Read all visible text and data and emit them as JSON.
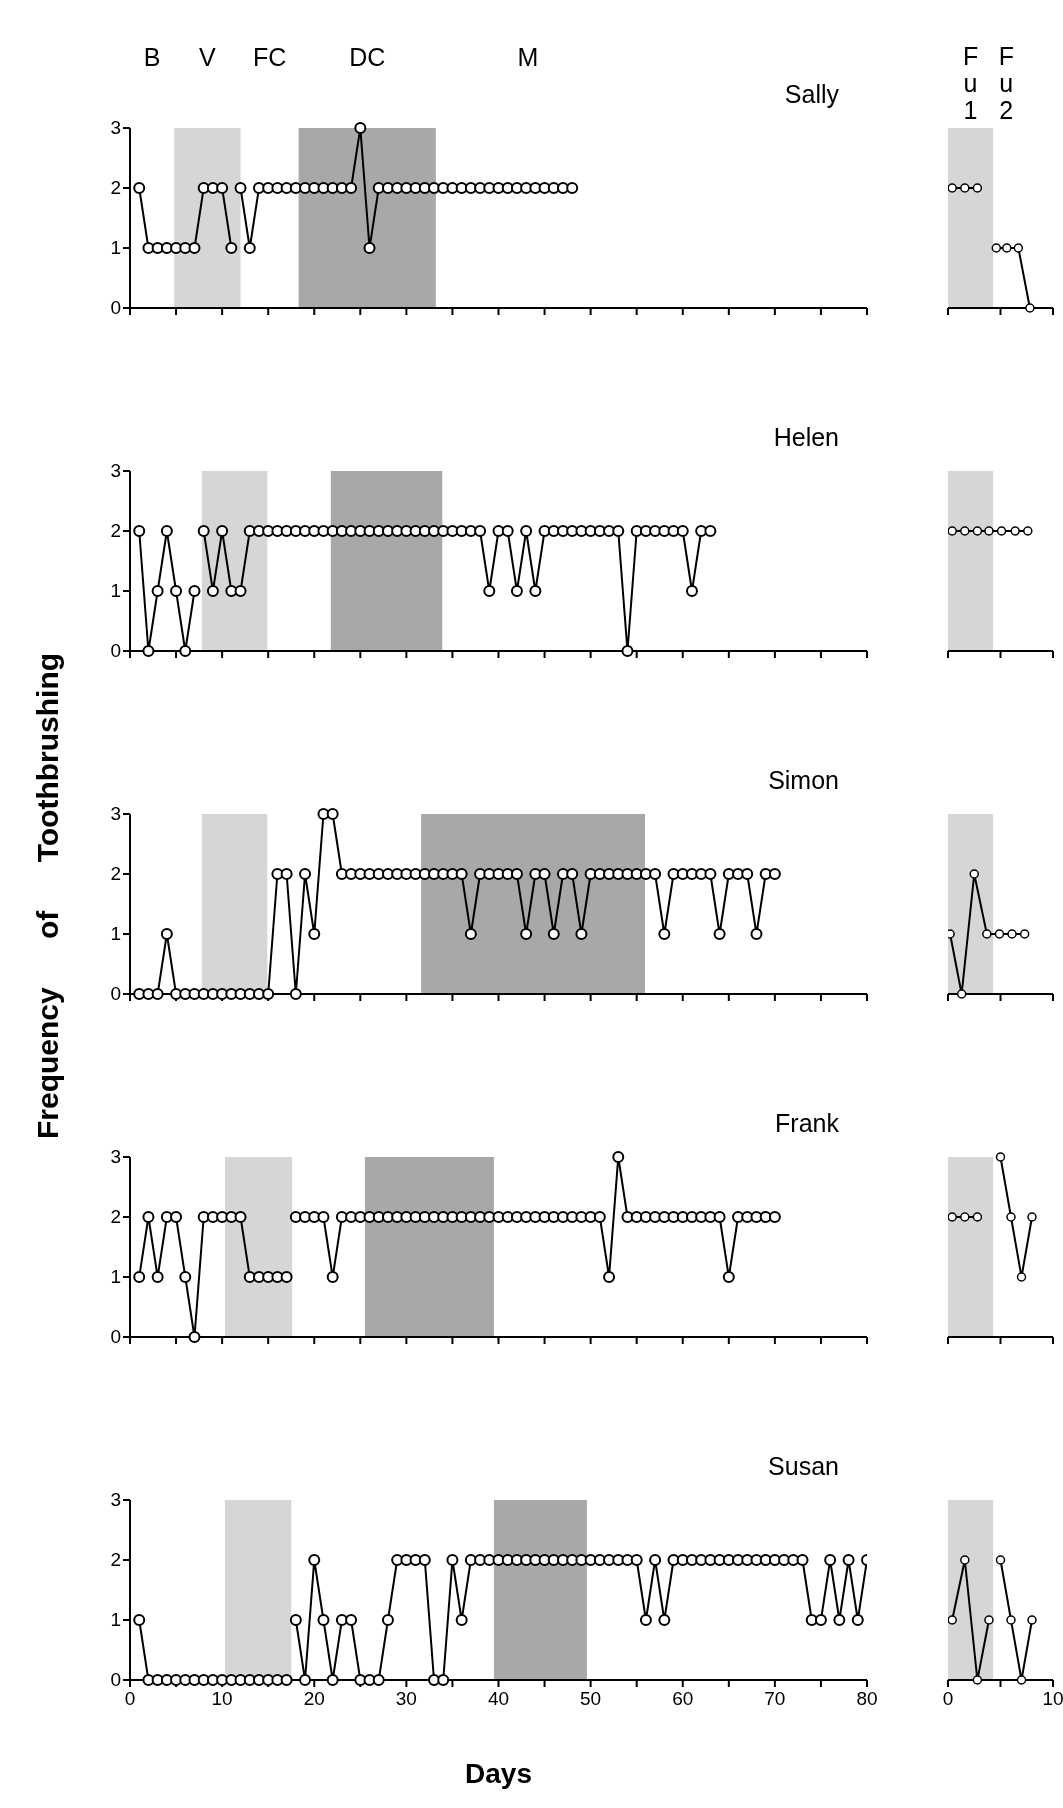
{
  "chart_data": [
    {
      "type": "line",
      "title": "Sally",
      "xlim": [
        0,
        80
      ],
      "xticks": [
        0,
        {
          "value": 5,
          "label": null
        },
        10,
        {
          "value": 15,
          "label": null
        },
        20,
        {
          "value": 25,
          "label": null
        },
        30,
        {
          "value": 35,
          "label": null
        },
        40,
        {
          "value": 45,
          "label": null
        },
        50,
        {
          "value": 55,
          "label": null
        },
        60,
        {
          "value": 65,
          "label": null
        },
        70,
        {
          "value": 75,
          "label": null
        },
        80
      ],
      "ylim": [
        0,
        3
      ],
      "yticks": [
        0,
        1,
        2,
        3
      ],
      "tick_labels": "y",
      "marker": "circle",
      "annotations": [
        "B",
        "FC",
        "M"
      ],
      "bands": [
        {
          "axis": "x",
          "from": 4.8,
          "to": 12,
          "label": "V",
          "color": "#d6d6d6"
        },
        {
          "axis": "x",
          "from": 18.3,
          "to": 33.2,
          "label": "DC",
          "color": "#a8a8a8"
        }
      ],
      "series": [
        {
          "color": "#000000",
          "x": [
            1,
            2,
            3,
            4,
            5,
            6,
            7,
            8,
            9,
            10,
            11
          ],
          "values": [
            2,
            1,
            1,
            1,
            1,
            1,
            1,
            2,
            2,
            2,
            1
          ]
        },
        {
          "color": "#000000",
          "x": [
            12,
            13,
            14,
            15,
            16,
            17,
            18,
            19,
            20,
            21,
            22,
            23,
            24,
            25,
            26,
            27,
            28,
            29,
            30,
            31,
            32,
            33,
            34,
            35,
            36,
            37,
            38,
            39,
            40,
            41,
            42,
            43,
            44,
            45,
            46,
            47,
            48
          ],
          "values": [
            2,
            1,
            2,
            2,
            2,
            2,
            2,
            2,
            2,
            2,
            2,
            2,
            2,
            3,
            1,
            2,
            2,
            2,
            2,
            2,
            2,
            2,
            2,
            2,
            2,
            2,
            2,
            2,
            2,
            2,
            2,
            2,
            2,
            2,
            2,
            2,
            2
          ]
        }
      ]
    },
    {
      "type": "line",
      "xlim": [
        0,
        10
      ],
      "xticks": [
        0,
        {
          "value": 5,
          "label": null
        },
        10
      ],
      "ylim": [
        0,
        3
      ],
      "tick_labels": false,
      "marker": "circle",
      "annotations": [
        "Fu2"
      ],
      "bands": [
        {
          "axis": "x",
          "from": 0,
          "to": 4.3,
          "label": "Fu1",
          "color": "#d6d6d6"
        }
      ],
      "series": [
        {
          "color": "#000000",
          "x": [
            0.4,
            1.6,
            2.8
          ],
          "values": [
            2,
            2,
            2
          ]
        },
        {
          "color": "#000000",
          "x": [
            4.6,
            5.6,
            6.7,
            7.8
          ],
          "values": [
            1,
            1,
            1,
            0
          ]
        }
      ]
    },
    {
      "type": "line",
      "title": "Helen",
      "xlim": [
        0,
        80
      ],
      "xticks": [
        0,
        {
          "value": 5,
          "label": null
        },
        10,
        {
          "value": 15,
          "label": null
        },
        20,
        {
          "value": 25,
          "label": null
        },
        30,
        {
          "value": 35,
          "label": null
        },
        40,
        {
          "value": 45,
          "label": null
        },
        50,
        {
          "value": 55,
          "label": null
        },
        60,
        {
          "value": 65,
          "label": null
        },
        70,
        {
          "value": 75,
          "label": null
        },
        80
      ],
      "ylim": [
        0,
        3
      ],
      "yticks": [
        0,
        1,
        2,
        3
      ],
      "tick_labels": "y",
      "marker": "circle",
      "bands": [
        {
          "axis": "x",
          "from": 7.8,
          "to": 14.9,
          "color": "#d6d6d6"
        },
        {
          "axis": "x",
          "from": 21.8,
          "to": 33.9,
          "color": "#a8a8a8"
        }
      ],
      "series": [
        {
          "color": "#000000",
          "x": [
            1,
            2,
            3,
            4,
            5,
            6,
            7
          ],
          "values": [
            2,
            0,
            1,
            2,
            1,
            0,
            1
          ]
        },
        {
          "color": "#000000",
          "x": [
            8,
            9,
            10,
            11,
            12,
            13,
            14,
            15,
            16,
            17,
            18,
            19,
            20,
            21,
            22,
            23,
            24,
            25,
            26,
            27,
            28,
            29,
            30,
            31,
            32,
            33,
            34,
            35,
            36,
            37,
            38,
            39,
            40,
            41,
            42,
            43,
            44,
            45,
            46,
            47,
            48,
            49,
            50,
            51,
            52,
            53,
            54,
            55,
            56,
            57,
            58,
            59,
            60,
            61,
            62,
            63
          ],
          "values": [
            2,
            1,
            2,
            1,
            1,
            2,
            2,
            2,
            2,
            2,
            2,
            2,
            2,
            2,
            2,
            2,
            2,
            2,
            2,
            2,
            2,
            2,
            2,
            2,
            2,
            2,
            2,
            2,
            2,
            2,
            2,
            1,
            2,
            2,
            1,
            2,
            1,
            2,
            2,
            2,
            2,
            2,
            2,
            2,
            2,
            2,
            0,
            2,
            2,
            2,
            2,
            2,
            2,
            1,
            2,
            2
          ]
        }
      ]
    },
    {
      "type": "line",
      "xlim": [
        0,
        10
      ],
      "xticks": [
        0,
        {
          "value": 5,
          "label": null
        },
        10
      ],
      "ylim": [
        0,
        3
      ],
      "tick_labels": false,
      "marker": "circle",
      "bands": [
        {
          "axis": "x",
          "from": 0,
          "to": 4.3,
          "color": "#d6d6d6"
        }
      ],
      "series": [
        {
          "color": "#000000",
          "x": [
            0.4,
            1.6,
            2.8,
            3.9,
            5.1,
            6.4,
            7.6
          ],
          "values": [
            2,
            2,
            2,
            2,
            2,
            2,
            2
          ]
        }
      ]
    },
    {
      "type": "line",
      "title": "Simon",
      "ylabel": "Frequency of Toothbrushing",
      "xlim": [
        0,
        80
      ],
      "xticks": [
        0,
        {
          "value": 5,
          "label": null
        },
        10,
        {
          "value": 15,
          "label": null
        },
        20,
        {
          "value": 25,
          "label": null
        },
        30,
        {
          "value": 35,
          "label": null
        },
        40,
        {
          "value": 45,
          "label": null
        },
        50,
        {
          "value": 55,
          "label": null
        },
        60,
        {
          "value": 65,
          "label": null
        },
        70,
        {
          "value": 75,
          "label": null
        },
        80
      ],
      "ylim": [
        0,
        3
      ],
      "yticks": [
        0,
        1,
        2,
        3
      ],
      "tick_labels": "y",
      "marker": "circle",
      "bands": [
        {
          "axis": "x",
          "from": 7.8,
          "to": 14.9,
          "color": "#d6d6d6"
        },
        {
          "axis": "x",
          "from": 31.6,
          "to": 55.9,
          "color": "#a8a8a8"
        }
      ],
      "series": [
        {
          "color": "#000000",
          "x": [
            1,
            2,
            3,
            4,
            5,
            6,
            7,
            8,
            9,
            10,
            11,
            12,
            13,
            14,
            15,
            16,
            17,
            18,
            19,
            20,
            21,
            22,
            23,
            24,
            25,
            26,
            27,
            28,
            29,
            30,
            31,
            32,
            33,
            34,
            35,
            36,
            37,
            38,
            39,
            40,
            41,
            42,
            43,
            44,
            45,
            46,
            47,
            48,
            49,
            50,
            51,
            52,
            53,
            54,
            55,
            56,
            57,
            58,
            59,
            60,
            61,
            62,
            63,
            64,
            65,
            66,
            67,
            68,
            69,
            70
          ],
          "values": [
            0,
            0,
            0,
            1,
            0,
            0,
            0,
            0,
            0,
            0,
            0,
            0,
            0,
            0,
            0,
            2,
            2,
            0,
            2,
            1,
            3,
            3,
            2,
            2,
            2,
            2,
            2,
            2,
            2,
            2,
            2,
            2,
            2,
            2,
            2,
            2,
            1,
            2,
            2,
            2,
            2,
            2,
            1,
            2,
            2,
            1,
            2,
            2,
            1,
            2,
            2,
            2,
            2,
            2,
            2,
            2,
            2,
            1,
            2,
            2,
            2,
            2,
            2,
            1,
            2,
            2,
            2,
            1,
            2,
            2
          ]
        }
      ]
    },
    {
      "type": "line",
      "xlim": [
        0,
        10
      ],
      "xticks": [
        0,
        {
          "value": 5,
          "label": null
        },
        10
      ],
      "ylim": [
        0,
        3
      ],
      "tick_labels": false,
      "marker": "circle",
      "bands": [
        {
          "axis": "x",
          "from": 0,
          "to": 4.3,
          "color": "#d6d6d6"
        }
      ],
      "series": [
        {
          "color": "#000000",
          "x": [
            0.2,
            1.3,
            2.5,
            3.7,
            4.9,
            6.1,
            7.3
          ],
          "values": [
            1,
            0,
            2,
            1,
            1,
            1,
            1
          ]
        }
      ]
    },
    {
      "type": "line",
      "title": "Frank",
      "xlim": [
        0,
        80
      ],
      "xticks": [
        0,
        {
          "value": 5,
          "label": null
        },
        10,
        {
          "value": 15,
          "label": null
        },
        20,
        {
          "value": 25,
          "label": null
        },
        30,
        {
          "value": 35,
          "label": null
        },
        40,
        {
          "value": 45,
          "label": null
        },
        50,
        {
          "value": 55,
          "label": null
        },
        60,
        {
          "value": 65,
          "label": null
        },
        70,
        {
          "value": 75,
          "label": null
        },
        80
      ],
      "ylim": [
        0,
        3
      ],
      "yticks": [
        0,
        1,
        2,
        3
      ],
      "tick_labels": "y",
      "marker": "circle",
      "bands": [
        {
          "axis": "x",
          "from": 10.3,
          "to": 17.6,
          "color": "#d6d6d6"
        },
        {
          "axis": "x",
          "from": 25.5,
          "to": 39.5,
          "color": "#a8a8a8"
        }
      ],
      "series": [
        {
          "color": "#000000",
          "x": [
            1,
            2,
            3,
            4,
            5,
            6,
            7,
            8,
            9,
            10,
            11,
            12,
            13,
            14,
            15,
            16,
            17
          ],
          "values": [
            1,
            2,
            1,
            2,
            2,
            1,
            0,
            2,
            2,
            2,
            2,
            2,
            1,
            1,
            1,
            1,
            1
          ]
        },
        {
          "color": "#000000",
          "x": [
            18,
            19,
            20,
            21,
            22,
            23,
            24,
            25,
            26,
            27,
            28,
            29,
            30,
            31,
            32,
            33,
            34,
            35,
            36,
            37,
            38,
            39,
            40,
            41,
            42,
            43,
            44,
            45,
            46,
            47,
            48,
            49,
            50,
            51,
            52,
            53,
            54,
            55,
            56,
            57,
            58,
            59,
            60,
            61,
            62,
            63,
            64,
            65,
            66,
            67,
            68,
            69,
            70
          ],
          "values": [
            2,
            2,
            2,
            2,
            1,
            2,
            2,
            2,
            2,
            2,
            2,
            2,
            2,
            2,
            2,
            2,
            2,
            2,
            2,
            2,
            2,
            2,
            2,
            2,
            2,
            2,
            2,
            2,
            2,
            2,
            2,
            2,
            2,
            2,
            1,
            3,
            2,
            2,
            2,
            2,
            2,
            2,
            2,
            2,
            2,
            2,
            2,
            1,
            2,
            2,
            2,
            2,
            2
          ]
        }
      ]
    },
    {
      "type": "line",
      "xlim": [
        0,
        10
      ],
      "xticks": [
        0,
        {
          "value": 5,
          "label": null
        },
        10
      ],
      "ylim": [
        0,
        3
      ],
      "tick_labels": false,
      "marker": "circle",
      "bands": [
        {
          "axis": "x",
          "from": 0,
          "to": 4.3,
          "color": "#d6d6d6"
        }
      ],
      "series": [
        {
          "color": "#000000",
          "x": [
            0.4,
            1.6,
            2.8
          ],
          "values": [
            2,
            2,
            2
          ]
        },
        {
          "color": "#000000",
          "x": [
            5,
            6,
            7,
            8
          ],
          "values": [
            3,
            2,
            1,
            2
          ]
        }
      ]
    },
    {
      "type": "line",
      "title": "Susan",
      "xlabel": "Days",
      "xlim": [
        0,
        80
      ],
      "xticks": [
        0,
        {
          "value": 5,
          "label": null
        },
        10,
        {
          "value": 15,
          "label": null
        },
        20,
        {
          "value": 25,
          "label": null
        },
        30,
        {
          "value": 35,
          "label": null
        },
        40,
        {
          "value": 45,
          "label": null
        },
        50,
        {
          "value": 55,
          "label": null
        },
        60,
        {
          "value": 65,
          "label": null
        },
        70,
        {
          "value": 75,
          "label": null
        },
        80
      ],
      "ylim": [
        0,
        3
      ],
      "yticks": [
        0,
        1,
        2,
        3
      ],
      "marker": "circle",
      "bands": [
        {
          "axis": "x",
          "from": 10.3,
          "to": 17.5,
          "color": "#d6d6d6"
        },
        {
          "axis": "x",
          "from": 39.5,
          "to": 49.6,
          "color": "#a8a8a8"
        }
      ],
      "series": [
        {
          "color": "#000000",
          "x": [
            1,
            2,
            3,
            4,
            5,
            6,
            7,
            8,
            9,
            10,
            11,
            12,
            13,
            14,
            15,
            16,
            17
          ],
          "values": [
            1,
            0,
            0,
            0,
            0,
            0,
            0,
            0,
            0,
            0,
            0,
            0,
            0,
            0,
            0,
            0,
            0
          ]
        },
        {
          "color": "#000000",
          "x": [
            18,
            19,
            20,
            21,
            22,
            23,
            24,
            25,
            26,
            27,
            28,
            29,
            30,
            31,
            32,
            33,
            34,
            35,
            36,
            37,
            38,
            39,
            40,
            41,
            42,
            43,
            44,
            45,
            46,
            47,
            48,
            49,
            50,
            51,
            52,
            53,
            54,
            55,
            56,
            57,
            58,
            59,
            60,
            61,
            62,
            63,
            64,
            65,
            66,
            67,
            68,
            69,
            70,
            71,
            72,
            73,
            74,
            75,
            76,
            77,
            78,
            79,
            80
          ],
          "values": [
            1,
            0,
            2,
            1,
            0,
            1,
            1,
            0,
            0,
            0,
            1,
            2,
            2,
            2,
            2,
            0,
            0,
            2,
            1,
            2,
            2,
            2,
            2,
            2,
            2,
            2,
            2,
            2,
            2,
            2,
            2,
            2,
            2,
            2,
            2,
            2,
            2,
            2,
            1,
            2,
            1,
            2,
            2,
            2,
            2,
            2,
            2,
            2,
            2,
            2,
            2,
            2,
            2,
            2,
            2,
            2,
            1,
            1,
            2,
            1,
            2,
            1,
            2
          ]
        }
      ]
    },
    {
      "type": "line",
      "xlim": [
        0,
        10
      ],
      "xticks": [
        0,
        {
          "value": 5,
          "label": null
        },
        10
      ],
      "ylim": [
        0,
        3
      ],
      "tick_labels": "x",
      "marker": "circle",
      "bands": [
        {
          "axis": "x",
          "from": 0,
          "to": 4.3,
          "color": "#d6d6d6"
        }
      ],
      "series": [
        {
          "color": "#000000",
          "x": [
            0.4,
            1.6,
            2.8,
            3.9
          ],
          "values": [
            1,
            2,
            0,
            1
          ]
        },
        {
          "color": "#000000",
          "x": [
            5,
            6,
            7,
            8
          ],
          "values": [
            2,
            1,
            0,
            1
          ]
        }
      ]
    }
  ]
}
